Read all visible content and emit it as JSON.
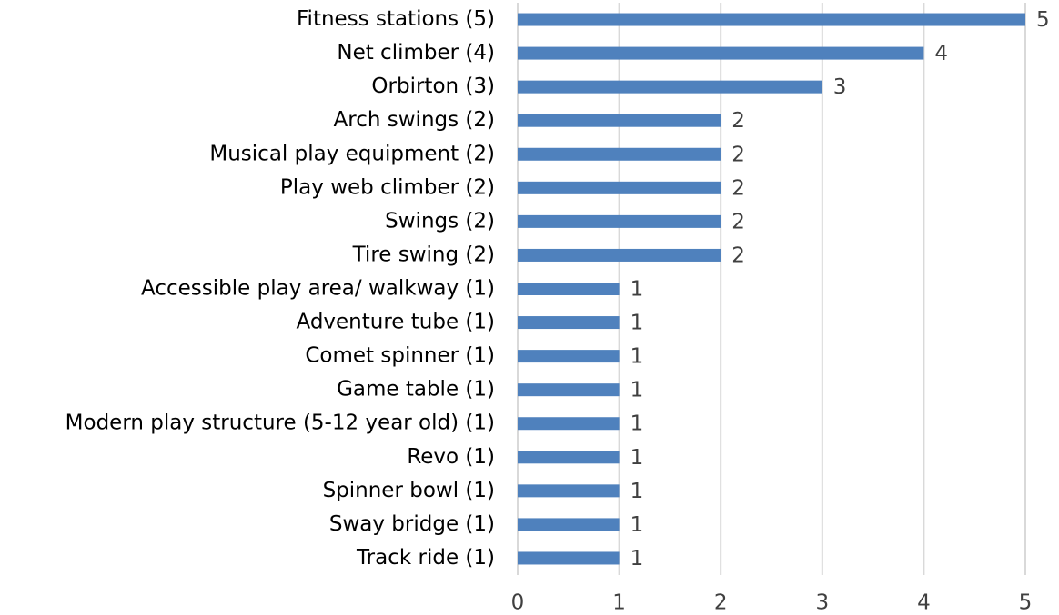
{
  "chart_data": {
    "type": "bar",
    "orientation": "horizontal",
    "categories": [
      "Fitness stations (5)",
      "Net climber (4)",
      "Orbirton (3)",
      "Arch swings (2)",
      "Musical play equipment (2)",
      "Play web climber (2)",
      "Swings (2)",
      "Tire swing (2)",
      "Accessible play area/ walkway (1)",
      "Adventure tube (1)",
      "Comet spinner (1)",
      "Game table (1)",
      "Modern play structure (5-12 year old) (1)",
      "Revo (1)",
      "Spinner bowl (1)",
      "Sway bridge (1)",
      "Track ride (1)"
    ],
    "values": [
      5,
      4,
      3,
      2,
      2,
      2,
      2,
      2,
      1,
      1,
      1,
      1,
      1,
      1,
      1,
      1,
      1
    ],
    "color": "#4f81bd",
    "xlim": [
      0,
      5
    ],
    "xticks": [
      0,
      1,
      2,
      3,
      4,
      5
    ],
    "grid": true
  }
}
